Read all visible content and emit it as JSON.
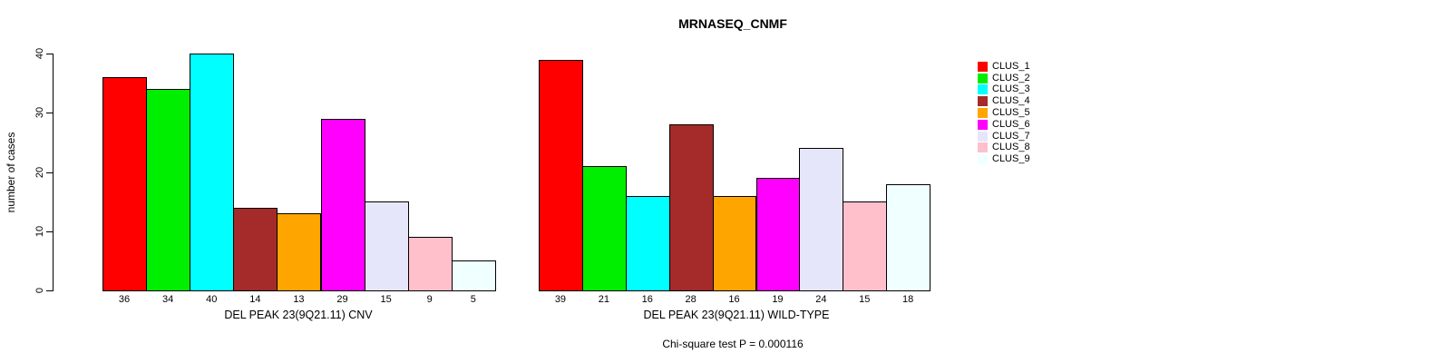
{
  "chart_data": {
    "type": "bar",
    "title": "MRNASEQ_CNMF",
    "ylabel": "number of cases",
    "xlabel": "",
    "ylim": [
      0,
      40
    ],
    "yticks": [
      0,
      10,
      20,
      30,
      40
    ],
    "grid": false,
    "legend_position": "right-outside",
    "clusters": [
      {
        "label": "CLUS_1",
        "color": "#FF0000"
      },
      {
        "label": "CLUS_2",
        "color": "#00EE00"
      },
      {
        "label": "CLUS_3",
        "color": "#00FFFF"
      },
      {
        "label": "CLUS_4",
        "color": "#A52A2A"
      },
      {
        "label": "CLUS_5",
        "color": "#FFA500"
      },
      {
        "label": "CLUS_6",
        "color": "#FF00FF"
      },
      {
        "label": "CLUS_7",
        "color": "#E6E6FA"
      },
      {
        "label": "CLUS_8",
        "color": "#FFC0CB"
      },
      {
        "label": "CLUS_9",
        "color": "#F0FFFF"
      }
    ],
    "groups": [
      {
        "label": "DEL PEAK 23(9Q21.11) CNV",
        "values": [
          36,
          34,
          40,
          14,
          13,
          29,
          15,
          9,
          5
        ]
      },
      {
        "label": "DEL PEAK 23(9Q21.11) WILD-TYPE",
        "values": [
          39,
          21,
          16,
          28,
          16,
          19,
          24,
          15,
          18
        ]
      }
    ],
    "annotation": "Chi-square test P = 0.000116"
  }
}
